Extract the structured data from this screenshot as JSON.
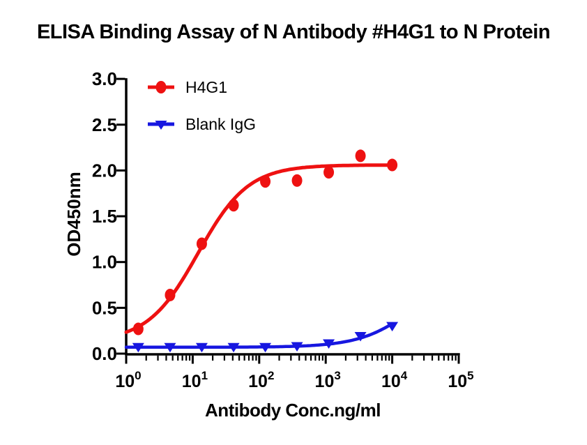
{
  "title": "ELISA Binding Assay of N Antibody #H4G1 to N Protein",
  "colors": {
    "background": "#FFFFFF",
    "axis": "#000000",
    "h4g1": "#EE1111",
    "blank_igg": "#1717E0"
  },
  "chart_data": {
    "type": "scatter",
    "title": "ELISA Binding Assay of N Antibody #H4G1 to N Protein",
    "xlabel": "Antibody Conc.ng/ml",
    "ylabel": "OD450nm",
    "x_scale": "log10",
    "xlim_log": [
      0,
      5
    ],
    "ylim": [
      0,
      3
    ],
    "grid": false,
    "legend_position": "inside-top-left",
    "x_ticks": {
      "base": "10",
      "exponents": [
        0,
        1,
        2,
        3,
        4,
        5
      ]
    },
    "y_ticks": {
      "values": [
        0,
        0.5,
        1,
        1.5,
        2,
        2.5,
        3
      ],
      "labels": [
        "0.0",
        "0.5",
        "1.0",
        "1.5",
        "2.0",
        "2.5",
        "3.0"
      ]
    },
    "series": [
      {
        "name": "H4G1",
        "color": "#EE1111",
        "marker": "circle",
        "x": [
          1.52,
          4.57,
          13.7,
          41.2,
          123.5,
          370.4,
          1111.1,
          3333.3,
          10000
        ],
        "y": [
          0.27,
          0.64,
          1.2,
          1.62,
          1.88,
          1.89,
          1.98,
          2.16,
          2.06
        ],
        "fit": {
          "bottom": 0.13,
          "top": 2.06,
          "ec50": 12,
          "hill": 1.15,
          "log_x_start": 0,
          "log_x_end": 4.0
        }
      },
      {
        "name": "Blank IgG",
        "color": "#1717E0",
        "marker": "triangle-down",
        "x": [
          1.52,
          4.57,
          13.7,
          41.2,
          123.5,
          370.4,
          1111.1,
          3333.3,
          10000
        ],
        "y": [
          0.07,
          0.07,
          0.07,
          0.07,
          0.07,
          0.08,
          0.11,
          0.19,
          0.3
        ],
        "fit": {
          "bottom": 0.07,
          "top": 1.0,
          "ec50": 25000,
          "hill": 1.05,
          "log_x_start": 0,
          "log_x_end": 4.0
        }
      }
    ]
  }
}
